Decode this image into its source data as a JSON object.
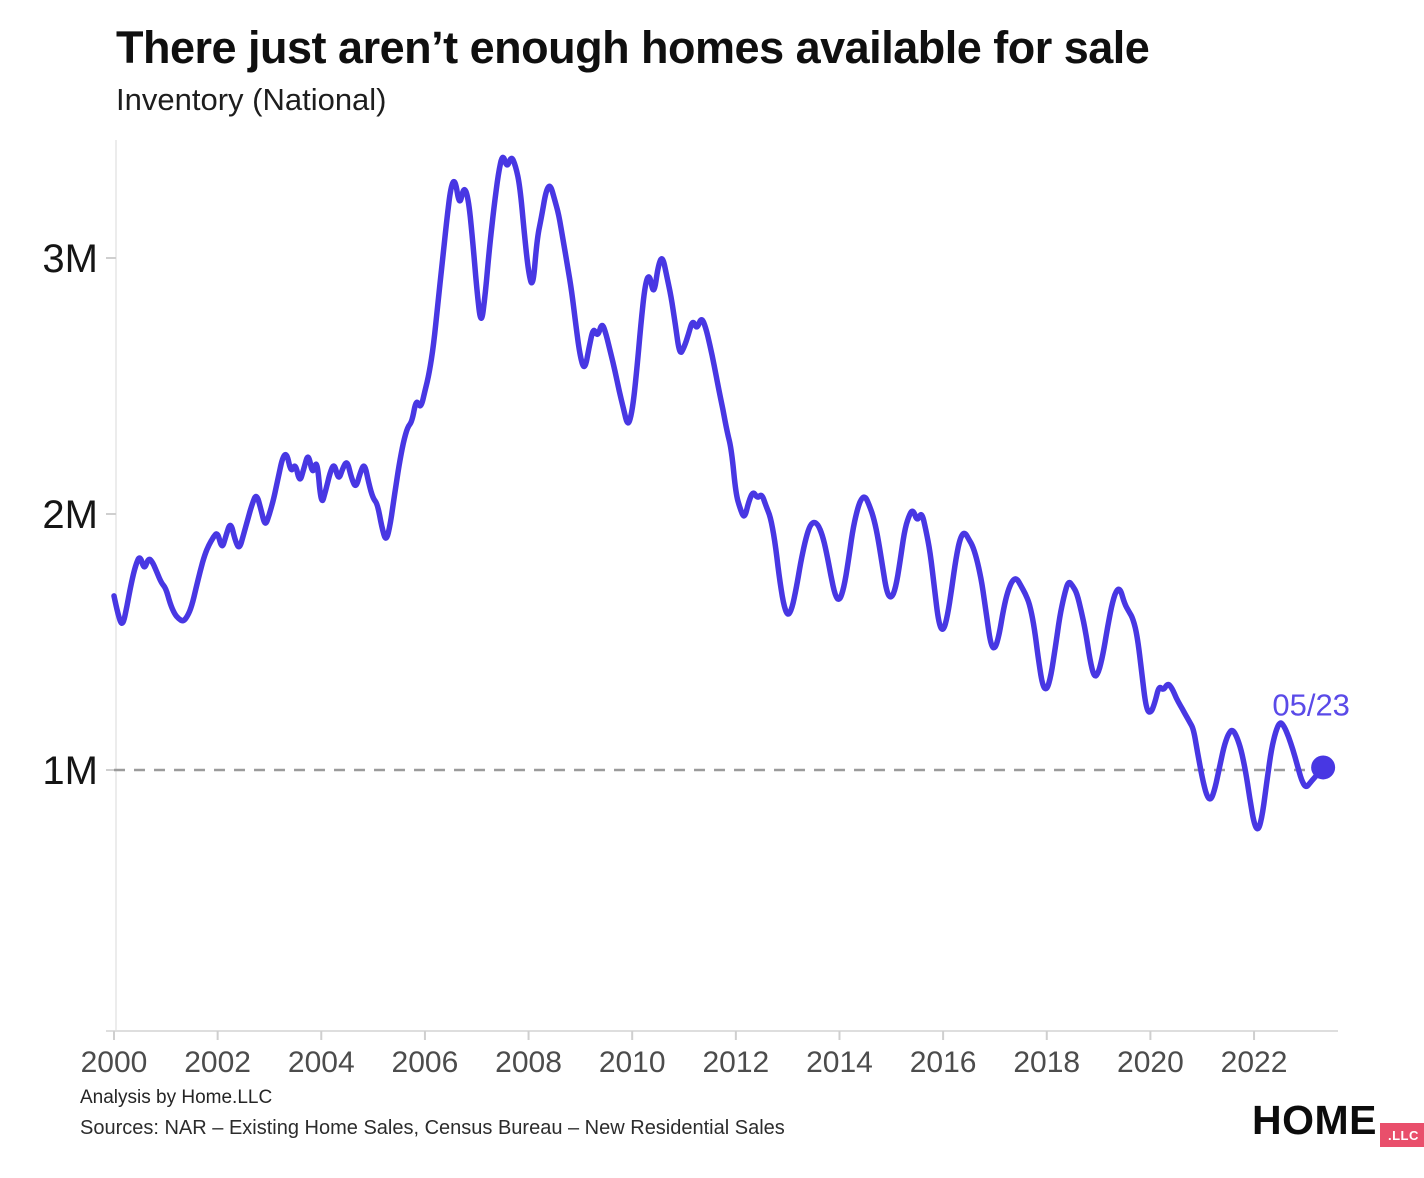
{
  "header": {
    "title": "There just aren’t enough homes available for sale",
    "subtitle": "Inventory (National)"
  },
  "footer": {
    "analysis": "Analysis by Home.LLC",
    "sources": "Sources: NAR – Existing Home Sales, Census Bureau – New Residential Sales"
  },
  "logo": {
    "name": "HOME",
    "suffix": ".LLC"
  },
  "colors": {
    "line": "#4837e3",
    "dot": "#4837e3",
    "annotation_text": "#5a4ae8",
    "reference_line": "#9b9b9b",
    "axis_line": "#ececec",
    "x_axis_line": "#dedede",
    "tick_mark": "#cfcfcf",
    "x_label": "#4c4c4c",
    "y_label": "#151515",
    "badge": "#e94f6b"
  },
  "chart_data": {
    "type": "line",
    "title": "There just aren’t enough homes available for sale",
    "subtitle": "Inventory (National)",
    "unit": "millions of homes",
    "grid": "off",
    "legend": "none",
    "x_range": [
      2000.0,
      2023.42
    ],
    "ylim": [
      0,
      3.6
    ],
    "x_tick_years": [
      2000,
      2002,
      2004,
      2006,
      2008,
      2010,
      2012,
      2014,
      2016,
      2018,
      2020,
      2022
    ],
    "x_tick_labels": [
      "2000",
      "2002",
      "2004",
      "2006",
      "2008",
      "2010",
      "2012",
      "2014",
      "2016",
      "2018",
      "2020",
      "2022"
    ],
    "y_tick_values_millions": [
      1,
      2,
      3
    ],
    "y_tick_labels": [
      "1M",
      "2M",
      "3M"
    ],
    "reference_line": {
      "value_millions": 1,
      "style": "dashed"
    },
    "annotation": {
      "label": "05/23",
      "year": 2023.417,
      "value_millions": 1.01
    },
    "series": [
      {
        "name": "Inventory (National)",
        "frequency": "monthly",
        "start_year": 2000,
        "start_month": 1,
        "end_label": "05/23",
        "values_millions": [
          1.68,
          1.6,
          1.56,
          1.64,
          1.73,
          1.8,
          1.84,
          1.78,
          1.83,
          1.81,
          1.77,
          1.73,
          1.71,
          1.65,
          1.61,
          1.59,
          1.58,
          1.6,
          1.64,
          1.71,
          1.78,
          1.84,
          1.88,
          1.91,
          1.93,
          1.86,
          1.92,
          1.97,
          1.9,
          1.86,
          1.92,
          1.98,
          2.04,
          2.08,
          2.02,
          1.95,
          2.0,
          2.06,
          2.14,
          2.22,
          2.24,
          2.16,
          2.2,
          2.12,
          2.18,
          2.24,
          2.15,
          2.22,
          2.03,
          2.09,
          2.16,
          2.2,
          2.13,
          2.18,
          2.21,
          2.14,
          2.1,
          2.16,
          2.2,
          2.12,
          2.06,
          2.04,
          1.95,
          1.89,
          1.96,
          2.08,
          2.19,
          2.28,
          2.34,
          2.36,
          2.45,
          2.41,
          2.48,
          2.55,
          2.66,
          2.82,
          2.98,
          3.14,
          3.28,
          3.31,
          3.2,
          3.28,
          3.24,
          3.08,
          2.88,
          2.73,
          2.86,
          3.05,
          3.2,
          3.33,
          3.41,
          3.35,
          3.4,
          3.36,
          3.28,
          3.1,
          2.94,
          2.88,
          3.08,
          3.16,
          3.26,
          3.29,
          3.23,
          3.17,
          3.07,
          2.97,
          2.87,
          2.73,
          2.61,
          2.56,
          2.65,
          2.73,
          2.69,
          2.75,
          2.7,
          2.63,
          2.56,
          2.48,
          2.41,
          2.34,
          2.4,
          2.55,
          2.74,
          2.9,
          2.94,
          2.85,
          2.97,
          3.01,
          2.93,
          2.85,
          2.74,
          2.62,
          2.65,
          2.7,
          2.76,
          2.72,
          2.77,
          2.73,
          2.66,
          2.58,
          2.49,
          2.41,
          2.32,
          2.25,
          2.08,
          2.02,
          1.98,
          2.05,
          2.09,
          2.06,
          2.08,
          2.03,
          1.99,
          1.9,
          1.76,
          1.65,
          1.6,
          1.63,
          1.71,
          1.81,
          1.89,
          1.95,
          1.97,
          1.96,
          1.92,
          1.85,
          1.76,
          1.68,
          1.66,
          1.71,
          1.81,
          1.93,
          2.01,
          2.06,
          2.07,
          2.03,
          1.98,
          1.9,
          1.79,
          1.69,
          1.67,
          1.71,
          1.81,
          1.93,
          1.99,
          2.02,
          1.97,
          2.01,
          1.94,
          1.85,
          1.71,
          1.57,
          1.54,
          1.6,
          1.71,
          1.83,
          1.91,
          1.93,
          1.9,
          1.87,
          1.81,
          1.73,
          1.61,
          1.49,
          1.47,
          1.53,
          1.63,
          1.7,
          1.74,
          1.75,
          1.72,
          1.69,
          1.65,
          1.57,
          1.44,
          1.33,
          1.31,
          1.37,
          1.48,
          1.6,
          1.68,
          1.74,
          1.72,
          1.69,
          1.62,
          1.54,
          1.43,
          1.36,
          1.38,
          1.45,
          1.55,
          1.64,
          1.7,
          1.71,
          1.65,
          1.62,
          1.59,
          1.52,
          1.38,
          1.24,
          1.22,
          1.26,
          1.33,
          1.31,
          1.34,
          1.32,
          1.28,
          1.25,
          1.22,
          1.19,
          1.16,
          1.06,
          0.97,
          0.9,
          0.88,
          0.93,
          1.01,
          1.09,
          1.14,
          1.16,
          1.13,
          1.08,
          1.0,
          0.89,
          0.79,
          0.76,
          0.83,
          0.96,
          1.08,
          1.15,
          1.19,
          1.17,
          1.13,
          1.08,
          1.02,
          0.96,
          0.93,
          0.95,
          0.97,
          0.99,
          1.01
        ]
      }
    ]
  }
}
